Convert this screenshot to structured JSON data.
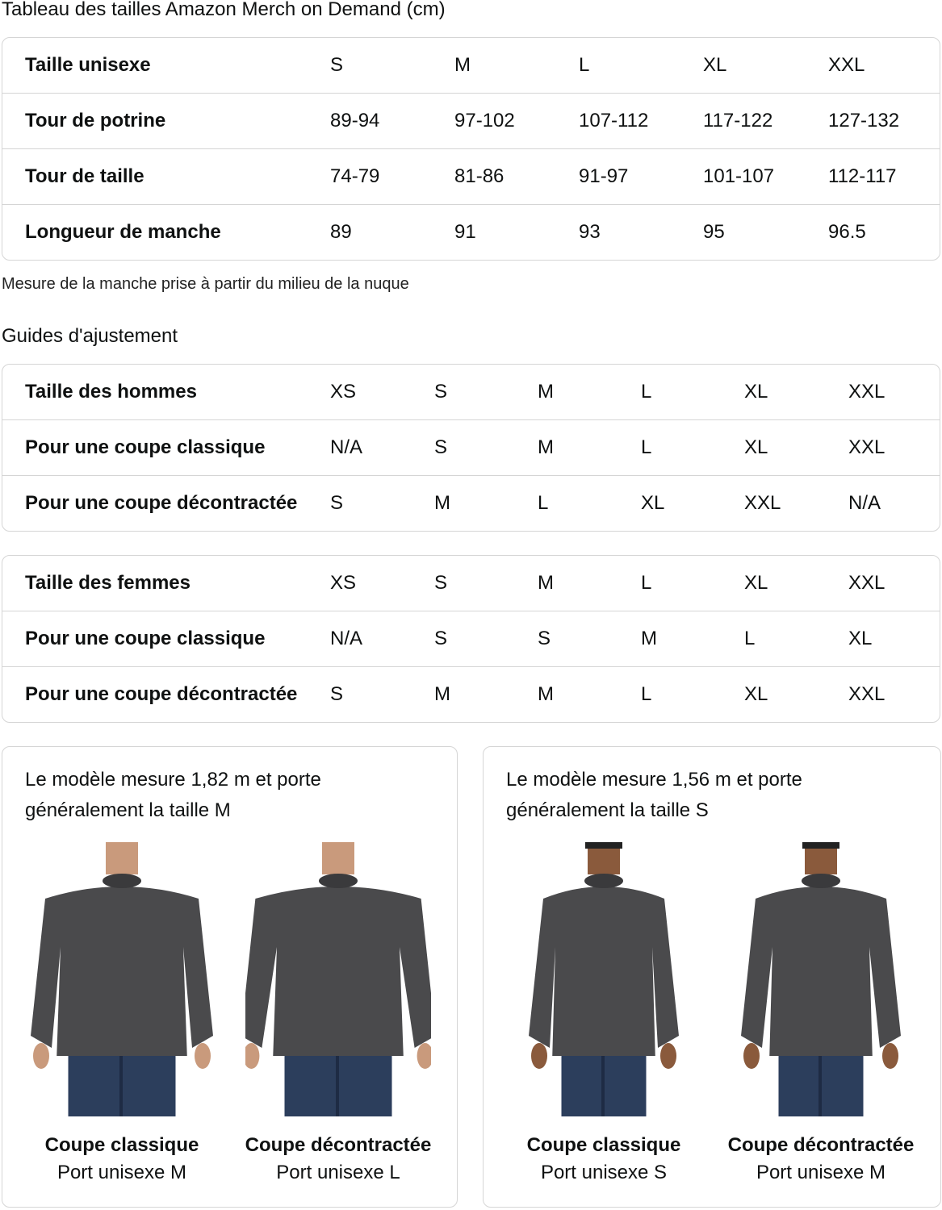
{
  "size_chart": {
    "title": "Tableau des tailles Amazon Merch on Demand (cm)",
    "rows": [
      [
        "Taille unisexe",
        "S",
        "M",
        "L",
        "XL",
        "XXL"
      ],
      [
        "Tour de potrine",
        "89-94",
        "97-102",
        "107-112",
        "117-122",
        "127-132"
      ],
      [
        "Tour de taille",
        "74-79",
        "81-86",
        "91-97",
        "101-107",
        "112-117"
      ],
      [
        "Longueur de manche",
        "89",
        "91",
        "93",
        "95",
        "96.5"
      ]
    ],
    "note": "Mesure de la manche prise à partir du milieu de la nuque"
  },
  "fit_guides": {
    "title": "Guides d'ajustement",
    "men": [
      [
        "Taille des hommes",
        "XS",
        "S",
        "M",
        "L",
        "XL",
        "XXL"
      ],
      [
        "Pour une coupe classique",
        "N/A",
        "S",
        "M",
        "L",
        "XL",
        "XXL"
      ],
      [
        "Pour une coupe décontractée",
        "S",
        "M",
        "L",
        "XL",
        "XXL",
        "N/A"
      ]
    ],
    "women": [
      [
        "Taille des femmes",
        "XS",
        "S",
        "M",
        "L",
        "XL",
        "XXL"
      ],
      [
        "Pour une coupe classique",
        "N/A",
        "S",
        "S",
        "M",
        "L",
        "XL"
      ],
      [
        "Pour une coupe décontractée",
        "S",
        "M",
        "M",
        "L",
        "XL",
        "XXL"
      ]
    ]
  },
  "models": [
    {
      "description": "Le modèle mesure 1,82 m et porte généralement la taille M",
      "gender": "male",
      "photos": [
        {
          "fit": "Coupe classique",
          "size": "Port unisexe M"
        },
        {
          "fit": "Coupe décontractée",
          "size": "Port unisexe L"
        }
      ]
    },
    {
      "description": "Le modèle mesure 1,56 m et porte généralement la taille S",
      "gender": "female",
      "photos": [
        {
          "fit": "Coupe classique",
          "size": "Port unisexe S"
        },
        {
          "fit": "Coupe décontractée",
          "size": "Port unisexe M"
        }
      ]
    }
  ],
  "colors": {
    "border": "#d5d5d5",
    "sweatshirt": "#4a4a4c",
    "jeans": "#2c3e5c"
  }
}
